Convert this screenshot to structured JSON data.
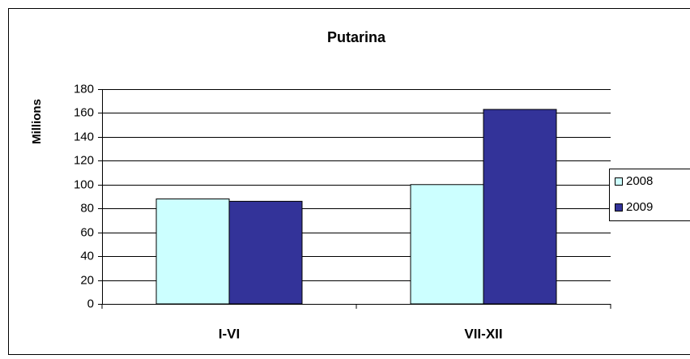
{
  "chart_data": {
    "type": "bar",
    "title": "Putarina",
    "y_label": "Millions",
    "categories": [
      "I-VI",
      "VII-XII"
    ],
    "series": [
      {
        "name": "2008",
        "color": "#ccffff",
        "values": [
          88,
          100
        ]
      },
      {
        "name": "2009",
        "color": "#333399",
        "values": [
          86,
          163
        ]
      }
    ],
    "ylim": [
      0,
      180
    ],
    "yticks": [
      0,
      20,
      40,
      60,
      80,
      100,
      120,
      140,
      160,
      180
    ],
    "grid": true,
    "legend": "right"
  }
}
